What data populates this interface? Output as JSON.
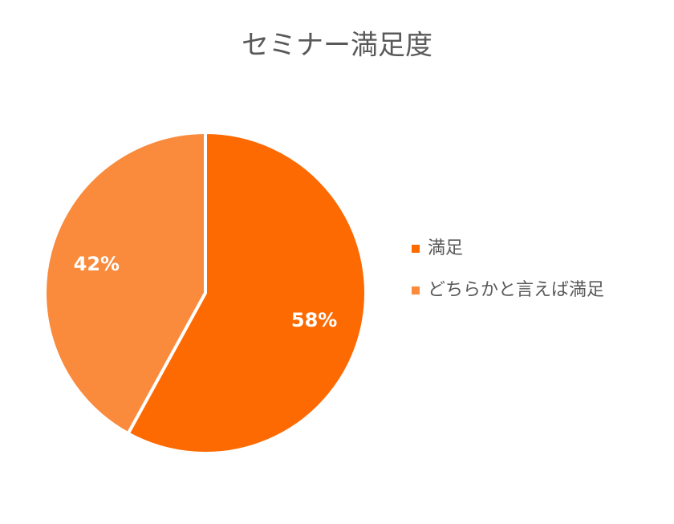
{
  "chart_data": {
    "type": "pie",
    "title": "セミナー満足度",
    "categories": [
      "満足",
      "どちらかと言えば満足"
    ],
    "values": [
      58,
      42
    ],
    "value_labels": [
      "58%",
      "42%"
    ],
    "colors": [
      "#fd6a02",
      "#fa8a3c"
    ],
    "legend": "right"
  }
}
